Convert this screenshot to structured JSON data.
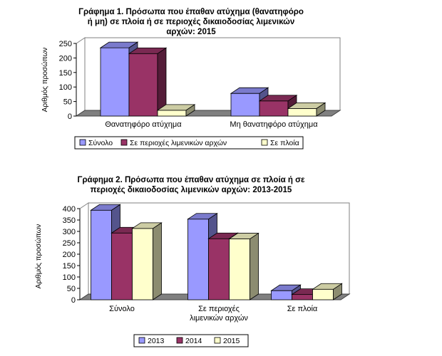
{
  "chart_data": [
    {
      "type": "bar",
      "title_lines": [
        "Γράφημα 1. Πρόσωπα που έπαθαν ατύχημα (θανατηφόρο",
        "ή μη) σε πλοία ή σε περιοχές δικαιοδοσίας λιμενικών",
        "αρχών: 2015"
      ],
      "ylabel": "Αριθμός προσώπων",
      "xlabel": "",
      "categories": [
        [
          "Θανατηφόρο ατύχημα"
        ],
        [
          "Μη θανατηφόρο ατύχημα"
        ]
      ],
      "series": [
        {
          "name": "Σύνολο",
          "values": [
            235,
            78
          ]
        },
        {
          "name": "Σε περιοχές λιμενικών αρχών",
          "values": [
            215,
            52
          ]
        },
        {
          "name": "Σε πλοία",
          "values": [
            20,
            26
          ]
        }
      ],
      "colors": [
        "#9999ff",
        "#993366",
        "#ffffcc"
      ],
      "ylim": [
        0,
        250
      ],
      "yticks": [
        0,
        50,
        100,
        150,
        200,
        250
      ],
      "grid": false,
      "legend_position": "bottom"
    },
    {
      "type": "bar",
      "title_lines": [
        "Γράφημα 2. Πρόσωπα που έπαθαν ατύχημα σε πλοία ή σε",
        "περιοχές δικαιοδοσίας λιμενικών αρχών: 2013-2015"
      ],
      "ylabel": "Αριθμός προσώπων",
      "xlabel": "",
      "categories": [
        [
          "Σύνολο"
        ],
        [
          "Σε περιοχές",
          "λιμενικών αρχών"
        ],
        [
          "Σε πλοία"
        ]
      ],
      "series": [
        {
          "name": "2013",
          "values": [
            393,
            354,
            40
          ]
        },
        {
          "name": "2014",
          "values": [
            293,
            268,
            23
          ]
        },
        {
          "name": "2015",
          "values": [
            313,
            267,
            46
          ]
        }
      ],
      "colors": [
        "#9999ff",
        "#993366",
        "#ffffcc"
      ],
      "ylim": [
        0,
        400
      ],
      "yticks": [
        0,
        50,
        100,
        150,
        200,
        250,
        300,
        350,
        400
      ],
      "grid": false,
      "legend_position": "bottom"
    }
  ]
}
